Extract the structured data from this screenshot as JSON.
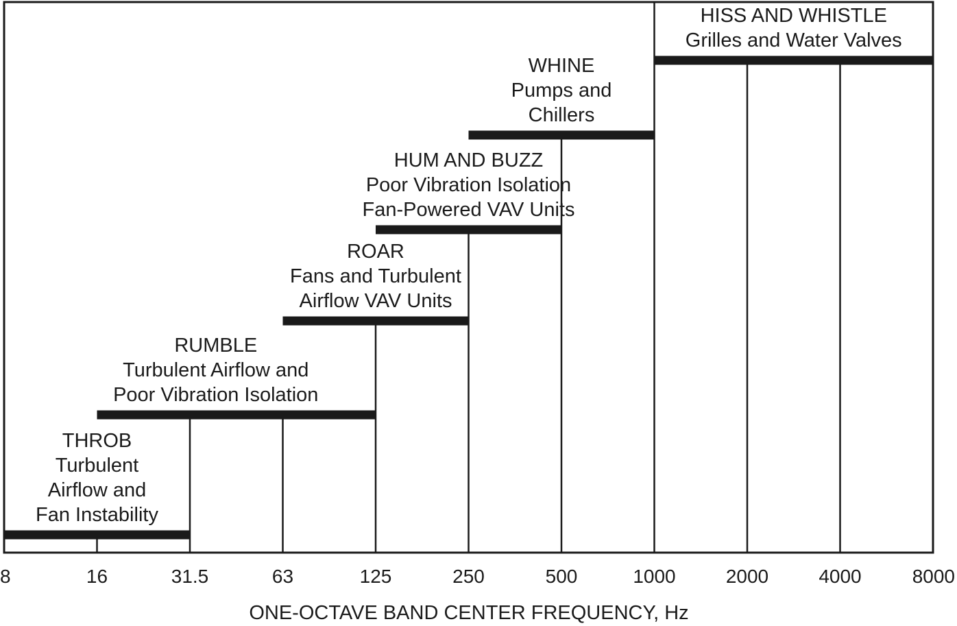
{
  "chart_data": {
    "type": "bar",
    "orientation": "horizontal-ranges",
    "title": "",
    "xlabel": "ONE-OCTAVE BAND CENTER FREQUENCY, Hz",
    "ylabel": "",
    "x_scale": "log2-octave",
    "ticks": [
      "8",
      "16",
      "31.5",
      "63",
      "125",
      "250",
      "500",
      "1000",
      "2000",
      "4000",
      "8000"
    ],
    "xlim": [
      "8",
      "8000"
    ],
    "grid": true,
    "legend": "none",
    "bar_color": "#1a1a1a",
    "bands": [
      {
        "name": "THROB",
        "lines": [
          "THROB",
          "Turbulent",
          "Airflow and",
          "Fan Instability"
        ],
        "from": "8",
        "to": "31.5"
      },
      {
        "name": "RUMBLE",
        "lines": [
          "RUMBLE",
          "Turbulent Airflow and",
          "Poor Vibration Isolation"
        ],
        "from": "16",
        "to": "125"
      },
      {
        "name": "ROAR",
        "lines": [
          "ROAR",
          "Fans and Turbulent",
          "Airflow VAV Units"
        ],
        "from": "63",
        "to": "250"
      },
      {
        "name": "HUM AND BUZZ",
        "lines": [
          "HUM AND BUZZ",
          "Poor Vibration Isolation",
          "Fan-Powered VAV Units"
        ],
        "from": "125",
        "to": "500"
      },
      {
        "name": "WHINE",
        "lines": [
          "WHINE",
          "Pumps and",
          "Chillers"
        ],
        "from": "250",
        "to": "1000"
      },
      {
        "name": "HISS AND WHISTLE",
        "lines": [
          "HISS AND WHISTLE",
          "Grilles and Water Valves"
        ],
        "from": "1000",
        "to": "8000"
      }
    ]
  }
}
